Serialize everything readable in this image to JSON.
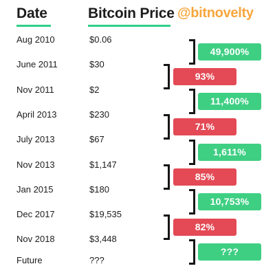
{
  "header": {
    "date_label": "Date",
    "price_label": "Bitcoin Price",
    "handle": "@bitnovelty"
  },
  "colors": {
    "up": "#3ecf83",
    "down": "#e34a55",
    "accent_underline": "#2ecf86",
    "handle": "#f7a63c"
  },
  "rows": [
    {
      "date": "Aug 2010",
      "price": "$0.06"
    },
    {
      "date": "June 2011",
      "price": "$30"
    },
    {
      "date": "Nov 2011",
      "price": "$2"
    },
    {
      "date": "April 2013",
      "price": "$230"
    },
    {
      "date": "July 2013",
      "price": "$67"
    },
    {
      "date": "Nov 2013",
      "price": "$1,147"
    },
    {
      "date": "Jan 2015",
      "price": "$180"
    },
    {
      "date": "Dec 2017",
      "price": "$19,535"
    },
    {
      "date": "Nov 2018",
      "price": "$3,448"
    },
    {
      "date": "Future",
      "price": "???"
    }
  ],
  "changes": [
    {
      "label": "49,900%",
      "direction": "up"
    },
    {
      "label": "93%",
      "direction": "down"
    },
    {
      "label": "11,400%",
      "direction": "up"
    },
    {
      "label": "71%",
      "direction": "down"
    },
    {
      "label": "1,611%",
      "direction": "up"
    },
    {
      "label": "85%",
      "direction": "down"
    },
    {
      "label": "10,753%",
      "direction": "up"
    },
    {
      "label": "82%",
      "direction": "down"
    },
    {
      "label": "???",
      "direction": "up"
    }
  ]
}
